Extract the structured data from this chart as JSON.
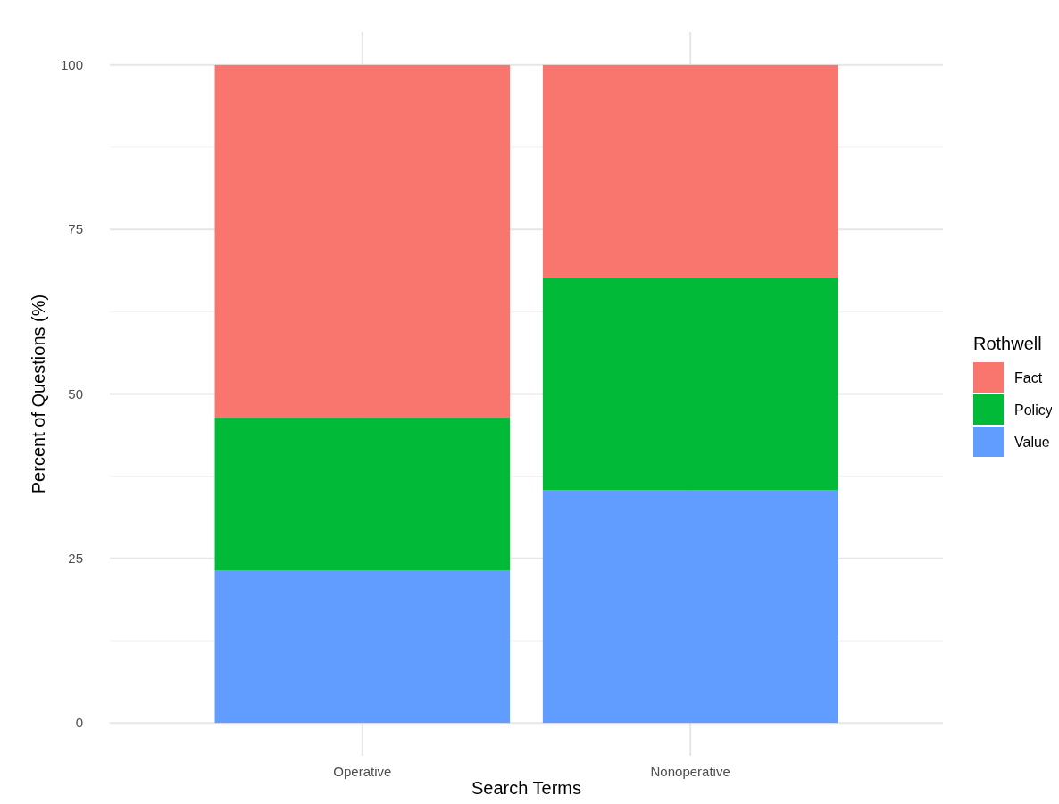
{
  "chart_data": {
    "type": "bar",
    "stacked": true,
    "xlabel": "Search Terms",
    "ylabel": "Percent of Questions (%)",
    "legend_title": "Rothwell",
    "categories": [
      "Operative",
      "Nonoperative"
    ],
    "series": [
      {
        "name": "Value",
        "color": "#619cff",
        "values": [
          23.2,
          35.4
        ]
      },
      {
        "name": "Policy",
        "color": "#00ba38",
        "values": [
          23.2,
          32.3
        ]
      },
      {
        "name": "Fact",
        "color": "#f8766d",
        "values": [
          53.6,
          32.3
        ]
      }
    ],
    "ylim": [
      -5,
      105
    ],
    "yticks": [
      0,
      25,
      50,
      75,
      100
    ],
    "grid": true,
    "legend": "right"
  }
}
